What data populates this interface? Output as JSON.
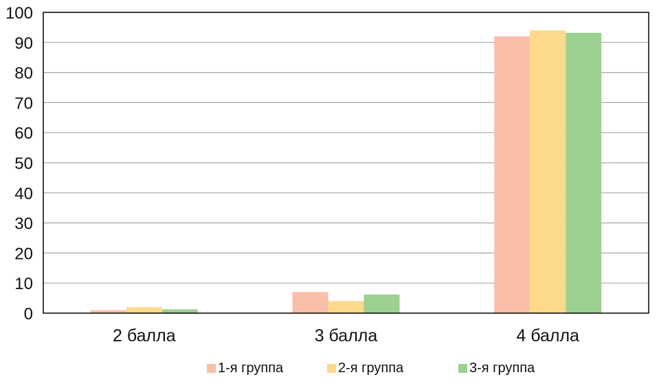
{
  "chart_data": {
    "type": "bar",
    "title": "",
    "xlabel": "",
    "ylabel": "",
    "categories": [
      "2 балла",
      "3 балла",
      "4 балла"
    ],
    "series": [
      {
        "name": "1-я группа",
        "values": [
          1,
          7,
          92
        ],
        "color": "#F9BFA8"
      },
      {
        "name": "2-я группа",
        "values": [
          2,
          4,
          94
        ],
        "color": "#FDD98C"
      },
      {
        "name": "3-я группа",
        "values": [
          1.3,
          6.2,
          93.2
        ],
        "color": "#9CD191"
      }
    ],
    "ylim": [
      0,
      100
    ],
    "yticks": [
      0,
      10,
      20,
      30,
      40,
      50,
      60,
      70,
      80,
      90,
      100
    ],
    "grid": true,
    "legend": "bottom-center",
    "colors": {
      "grid": "#A6A6A6",
      "axis": "#000000"
    }
  }
}
